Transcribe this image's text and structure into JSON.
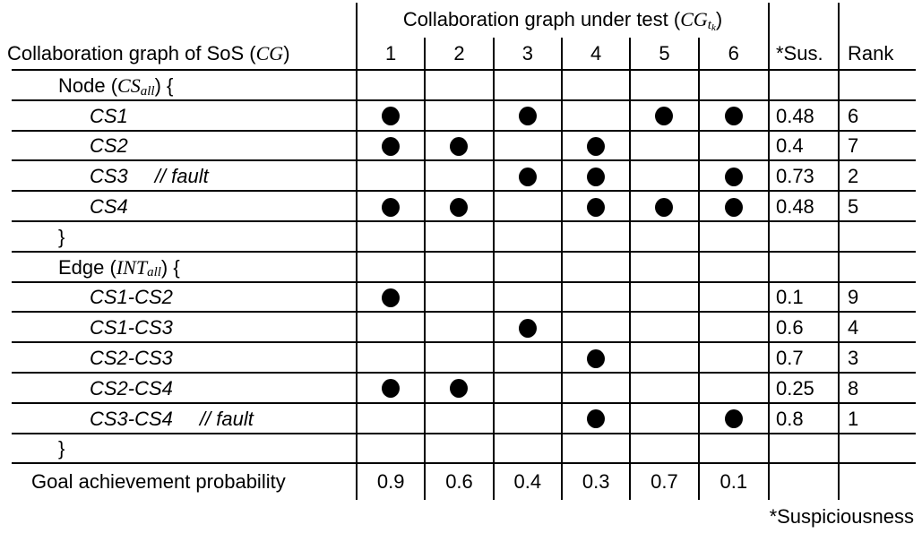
{
  "table": {
    "span_title_parts": [
      {
        "t": "Collaboration graph under test (",
        "s": "p"
      },
      {
        "t": "CG",
        "s": "m"
      },
      {
        "t": "t",
        "s": "ms"
      },
      {
        "t": "k",
        "s": "mss"
      },
      {
        "t": ")",
        "s": "p"
      }
    ],
    "row_header_parts": [
      {
        "t": "Collaboration graph of SoS (",
        "s": "p"
      },
      {
        "t": "CG",
        "s": "m"
      },
      {
        "t": ")",
        "s": "p"
      }
    ],
    "test_columns": [
      "1",
      "2",
      "3",
      "4",
      "5",
      "6"
    ],
    "sus_header": "*Sus.",
    "rank_header": "Rank",
    "rows": [
      {
        "indent": 1,
        "parts": [
          {
            "t": "Node (",
            "s": "p"
          },
          {
            "t": "CS",
            "s": "m"
          },
          {
            "t": "all",
            "s": "ms"
          },
          {
            "t": ") {",
            "s": "p"
          }
        ],
        "dots": [],
        "sus": "",
        "rank": ""
      },
      {
        "indent": 2,
        "parts": [
          {
            "t": "CS1",
            "s": "i"
          }
        ],
        "dots": [
          1,
          3,
          5,
          6
        ],
        "sus": "0.48",
        "rank": "6"
      },
      {
        "indent": 2,
        "parts": [
          {
            "t": "CS2",
            "s": "i"
          }
        ],
        "dots": [
          1,
          2,
          4
        ],
        "sus": "0.4",
        "rank": "7"
      },
      {
        "indent": 2,
        "parts": [
          {
            "t": "CS3",
            "s": "i"
          },
          {
            "t": "// fault",
            "s": "f"
          }
        ],
        "dots": [
          3,
          4,
          6
        ],
        "sus": "0.73",
        "rank": "2"
      },
      {
        "indent": 2,
        "parts": [
          {
            "t": "CS4",
            "s": "i"
          }
        ],
        "dots": [
          1,
          2,
          4,
          5,
          6
        ],
        "sus": "0.48",
        "rank": "5"
      },
      {
        "indent": 1,
        "parts": [
          {
            "t": "}",
            "s": "p"
          }
        ],
        "dots": [],
        "sus": "",
        "rank": ""
      },
      {
        "indent": 1,
        "parts": [
          {
            "t": "Edge (",
            "s": "p"
          },
          {
            "t": "INT",
            "s": "m"
          },
          {
            "t": "all",
            "s": "ms"
          },
          {
            "t": ") {",
            "s": "p"
          }
        ],
        "dots": [],
        "sus": "",
        "rank": ""
      },
      {
        "indent": 2,
        "parts": [
          {
            "t": "CS1-CS2",
            "s": "i"
          }
        ],
        "dots": [
          1
        ],
        "sus": "0.1",
        "rank": "9"
      },
      {
        "indent": 2,
        "parts": [
          {
            "t": "CS1-CS3",
            "s": "i"
          }
        ],
        "dots": [
          3
        ],
        "sus": "0.6",
        "rank": "4"
      },
      {
        "indent": 2,
        "parts": [
          {
            "t": "CS2-CS3",
            "s": "i"
          }
        ],
        "dots": [
          4
        ],
        "sus": "0.7",
        "rank": "3"
      },
      {
        "indent": 2,
        "parts": [
          {
            "t": "CS2-CS4",
            "s": "i"
          }
        ],
        "dots": [
          1,
          2
        ],
        "sus": "0.25",
        "rank": "8"
      },
      {
        "indent": 2,
        "parts": [
          {
            "t": "CS3-CS4",
            "s": "i"
          },
          {
            "t": "// fault",
            "s": "f"
          }
        ],
        "dots": [
          4,
          6
        ],
        "sus": "0.8",
        "rank": "1"
      },
      {
        "indent": 1,
        "parts": [
          {
            "t": "}",
            "s": "p"
          }
        ],
        "dots": [],
        "sus": "",
        "rank": ""
      }
    ],
    "goal_row": {
      "indent": 0,
      "parts": [
        {
          "t": "Goal achievement probability",
          "s": "p"
        }
      ],
      "values": [
        "0.9",
        "0.6",
        "0.4",
        "0.3",
        "0.7",
        "0.1"
      ],
      "sus": "",
      "rank": ""
    }
  },
  "footnote": "*Suspiciousness",
  "colors": {
    "text": "#000000",
    "line": "#000000",
    "dot": "#000000",
    "background": "#ffffff"
  }
}
